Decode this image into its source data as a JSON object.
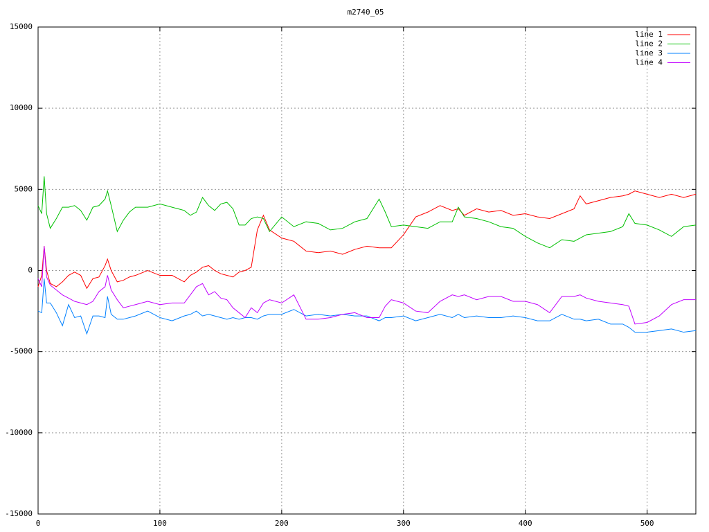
{
  "chart_data": {
    "type": "line",
    "title": "m2740_05",
    "x": [
      0,
      3,
      5,
      7,
      10,
      15,
      20,
      25,
      30,
      35,
      40,
      45,
      50,
      55,
      57,
      60,
      65,
      70,
      75,
      80,
      90,
      100,
      110,
      120,
      125,
      130,
      135,
      140,
      145,
      150,
      155,
      160,
      165,
      170,
      175,
      180,
      185,
      190,
      200,
      210,
      220,
      230,
      240,
      250,
      260,
      270,
      280,
      285,
      290,
      300,
      310,
      320,
      330,
      340,
      345,
      350,
      360,
      370,
      380,
      390,
      400,
      410,
      420,
      430,
      440,
      445,
      450,
      460,
      470,
      480,
      485,
      490,
      500,
      510,
      520,
      530,
      540
    ],
    "series": [
      {
        "name": "line 1",
        "color": "#ff0000",
        "values": [
          -1000,
          -300,
          1500,
          0,
          -800,
          -1000,
          -700,
          -300,
          -100,
          -300,
          -1100,
          -500,
          -400,
          300,
          700,
          0,
          -700,
          -600,
          -400,
          -300,
          0,
          -300,
          -300,
          -700,
          -300,
          -100,
          200,
          300,
          0,
          -200,
          -300,
          -400,
          -100,
          0,
          200,
          2500,
          3400,
          2500,
          2000,
          1800,
          1200,
          1100,
          1200,
          1000,
          1300,
          1500,
          1400,
          1400,
          1400,
          2200,
          3300,
          3600,
          4000,
          3700,
          3800,
          3400,
          3800,
          3600,
          3700,
          3400,
          3500,
          3300,
          3200,
          3500,
          3800,
          4600,
          4100,
          4300,
          4500,
          4600,
          4700,
          4900,
          4700,
          4500,
          4700,
          4500,
          4700
        ]
      },
      {
        "name": "line 2",
        "color": "#00c000",
        "values": [
          4000,
          3500,
          5800,
          3500,
          2600,
          3200,
          3900,
          3900,
          4000,
          3700,
          3100,
          3900,
          4000,
          4400,
          4900,
          4000,
          2400,
          3100,
          3600,
          3900,
          3900,
          4100,
          3900,
          3700,
          3400,
          3600,
          4500,
          4000,
          3700,
          4100,
          4200,
          3800,
          2800,
          2800,
          3200,
          3300,
          3200,
          2400,
          3300,
          2700,
          3000,
          2900,
          2500,
          2600,
          3000,
          3200,
          4400,
          3600,
          2700,
          2800,
          2700,
          2600,
          3000,
          3000,
          3900,
          3300,
          3200,
          3000,
          2700,
          2600,
          2100,
          1700,
          1400,
          1900,
          1800,
          2000,
          2200,
          2300,
          2400,
          2700,
          3500,
          2900,
          2800,
          2500,
          2100,
          2700,
          2800
        ]
      },
      {
        "name": "line 3",
        "color": "#0080ff",
        "values": [
          -2500,
          -2600,
          -500,
          -2000,
          -2000,
          -2600,
          -3400,
          -2100,
          -2900,
          -2800,
          -3900,
          -2800,
          -2800,
          -2900,
          -1600,
          -2700,
          -3000,
          -3000,
          -2900,
          -2800,
          -2500,
          -2900,
          -3100,
          -2800,
          -2700,
          -2500,
          -2800,
          -2700,
          -2800,
          -2900,
          -3000,
          -2900,
          -3000,
          -2900,
          -2900,
          -3000,
          -2800,
          -2700,
          -2700,
          -2400,
          -2800,
          -2700,
          -2800,
          -2700,
          -2800,
          -2800,
          -3100,
          -2900,
          -2900,
          -2800,
          -3100,
          -2900,
          -2700,
          -2900,
          -2700,
          -2900,
          -2800,
          -2900,
          -2900,
          -2800,
          -2900,
          -3100,
          -3100,
          -2700,
          -3000,
          -3000,
          -3100,
          -3000,
          -3300,
          -3300,
          -3500,
          -3800,
          -3800,
          -3700,
          -3600,
          -3800,
          -3700
        ]
      },
      {
        "name": "line 4",
        "color": "#c000ff",
        "values": [
          -500,
          -1000,
          1500,
          -400,
          -900,
          -1200,
          -1500,
          -1700,
          -1900,
          -2000,
          -2100,
          -1900,
          -1300,
          -1000,
          -300,
          -1200,
          -1800,
          -2300,
          -2200,
          -2100,
          -1900,
          -2100,
          -2000,
          -2000,
          -1500,
          -1000,
          -800,
          -1500,
          -1300,
          -1700,
          -1800,
          -2300,
          -2600,
          -2900,
          -2300,
          -2600,
          -2000,
          -1800,
          -2000,
          -1500,
          -3000,
          -3000,
          -2900,
          -2700,
          -2600,
          -2900,
          -2900,
          -2200,
          -1800,
          -2000,
          -2500,
          -2600,
          -1900,
          -1500,
          -1600,
          -1500,
          -1800,
          -1600,
          -1600,
          -1900,
          -1900,
          -2100,
          -2600,
          -1600,
          -1600,
          -1500,
          -1700,
          -1900,
          -2000,
          -2100,
          -2200,
          -3300,
          -3200,
          -2800,
          -2100,
          -1800,
          -1800
        ]
      }
    ],
    "xlim": [
      0,
      540
    ],
    "xticks": [
      0,
      100,
      200,
      300,
      400,
      500
    ],
    "ylim": [
      -15000,
      15000
    ],
    "yticks": [
      -15000,
      -10000,
      -5000,
      0,
      5000,
      10000,
      15000
    ],
    "grid": true,
    "legend": "top-right"
  }
}
